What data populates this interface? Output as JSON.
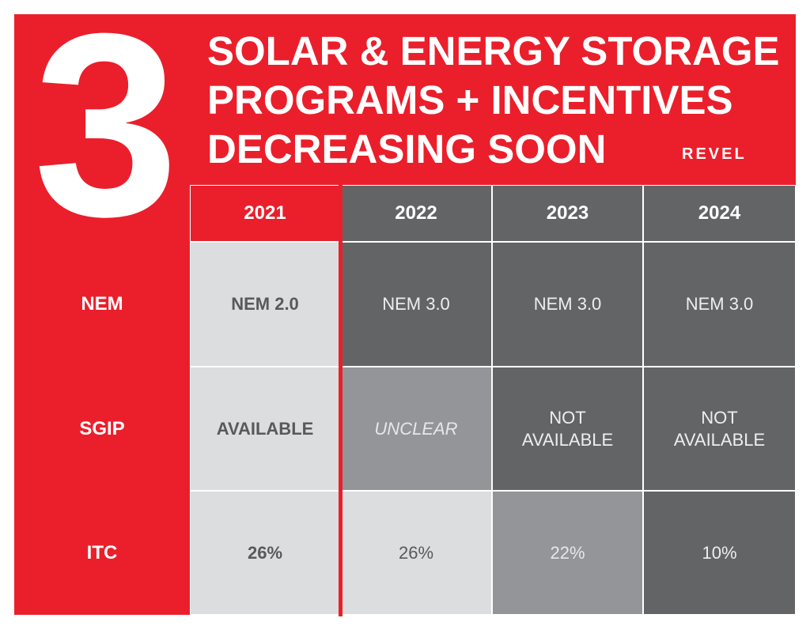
{
  "big_number": "3",
  "title_lines": [
    "SOLAR & ENERGY STORAGE",
    "PROGRAMS + INCENTIVES",
    "DECREASING SOON"
  ],
  "logo": "REVEL",
  "colors": {
    "red": "#ea1f2b",
    "light": "#dcdddf",
    "mid": "#939598",
    "dark": "#636466"
  },
  "years": [
    "2021",
    "2022",
    "2023",
    "2024"
  ],
  "rows": [
    {
      "label": "NEM",
      "cells": [
        "NEM 2.0",
        "NEM 3.0",
        "NEM 3.0",
        "NEM 3.0"
      ]
    },
    {
      "label": "SGIP",
      "cells": [
        "AVAILABLE",
        "UNCLEAR",
        "NOT\nAVAILABLE",
        "NOT\nAVAILABLE"
      ]
    },
    {
      "label": "ITC",
      "cells": [
        "26%",
        "26%",
        "22%",
        "10%"
      ]
    }
  ]
}
